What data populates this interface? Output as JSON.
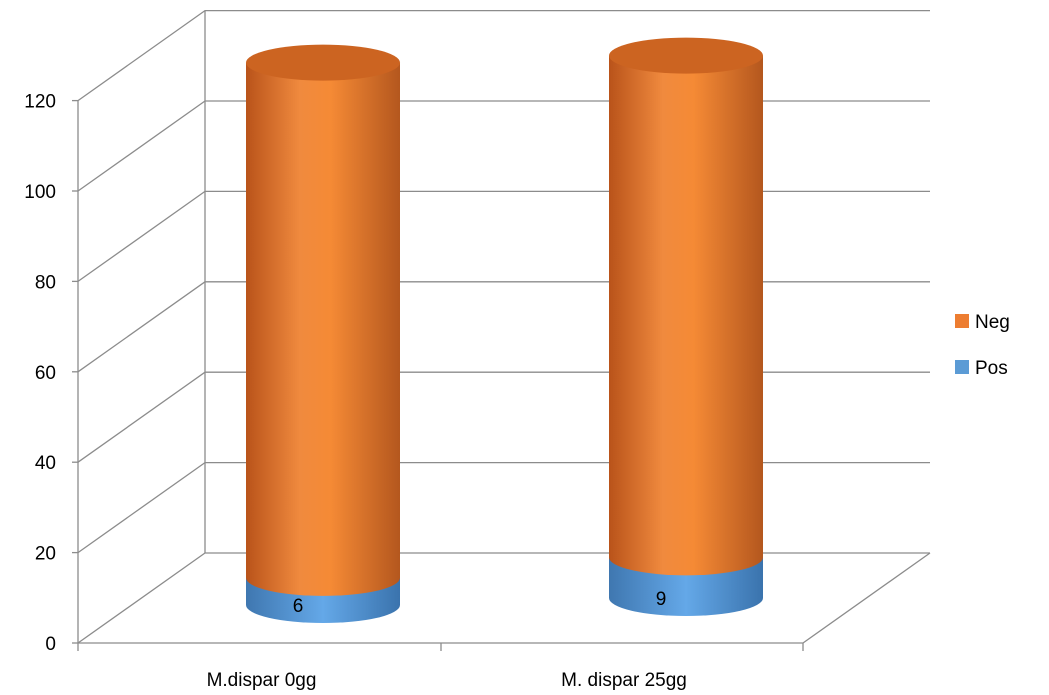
{
  "chart_data": {
    "type": "bar",
    "subtype": "stacked-3d-cylinder",
    "categories": [
      "M.dispar 0gg",
      "M. dispar 25gg"
    ],
    "series": [
      {
        "name": "Pos",
        "values": [
          6,
          9
        ],
        "color": "#5B9BD5",
        "data_labels": [
          "6",
          "9"
        ]
      },
      {
        "name": "Neg",
        "values": [
          114,
          111
        ],
        "color": "#ED7D31"
      }
    ],
    "y_ticks": [
      "0",
      "20",
      "40",
      "60",
      "80",
      "100",
      "120"
    ],
    "ylim": [
      0,
      120
    ],
    "grid": true,
    "legend_position": "right"
  }
}
